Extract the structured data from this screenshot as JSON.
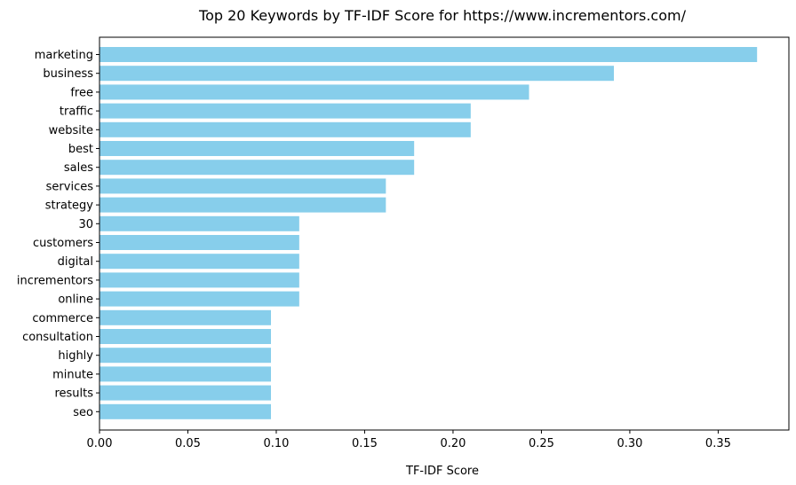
{
  "chart_data": {
    "type": "bar",
    "orientation": "horizontal",
    "title": "Top 20 Keywords by TF-IDF Score for https://www.incrementors.com/",
    "xlabel": "TF-IDF Score",
    "ylabel": "",
    "xlim": [
      0,
      0.39
    ],
    "xticks": [
      "0.00",
      "0.05",
      "0.10",
      "0.15",
      "0.20",
      "0.25",
      "0.30",
      "0.35"
    ],
    "bar_color": "#87ceeb",
    "grid": false,
    "categories": [
      "marketing",
      "business",
      "free",
      "traffic",
      "website",
      "best",
      "sales",
      "services",
      "strategy",
      "30",
      "customers",
      "digital",
      "incrementors",
      "online",
      "commerce",
      "consultation",
      "highly",
      "minute",
      "results",
      "seo"
    ],
    "values": [
      0.372,
      0.291,
      0.243,
      0.21,
      0.21,
      0.178,
      0.178,
      0.162,
      0.162,
      0.113,
      0.113,
      0.113,
      0.113,
      0.113,
      0.097,
      0.097,
      0.097,
      0.097,
      0.097,
      0.097
    ]
  }
}
